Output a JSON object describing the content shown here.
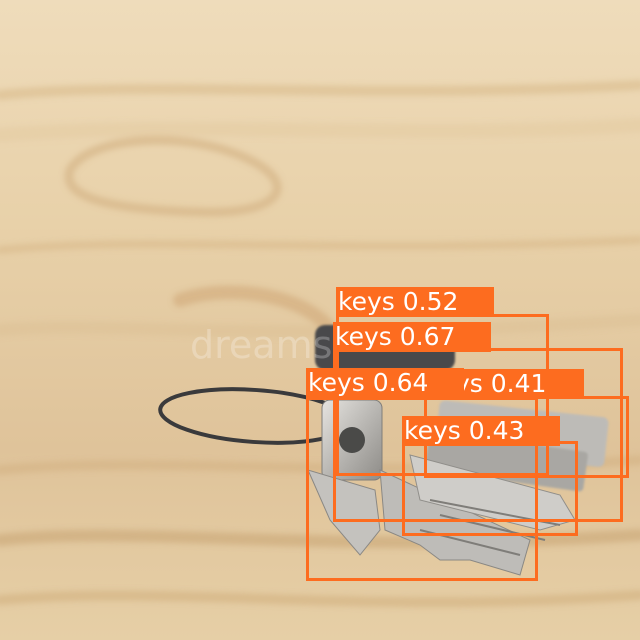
{
  "image": {
    "subject": "bunch of metal keys on a wire ring lying on a light wooden surface",
    "colors": {
      "wood_light": "#ecd8b6",
      "wood_mid": "#dcc091",
      "wood_dark": "#c9a473",
      "metal": "#c8c6c2",
      "box": "#fd6c1f"
    }
  },
  "detections": [
    {
      "label": "keys",
      "score": "0.52"
    },
    {
      "label": "keys",
      "score": "0.67"
    },
    {
      "label": "keys",
      "score": "0.64"
    },
    {
      "label": "keys",
      "score": "0.41"
    },
    {
      "label": "keys",
      "score": "0.43"
    }
  ]
}
